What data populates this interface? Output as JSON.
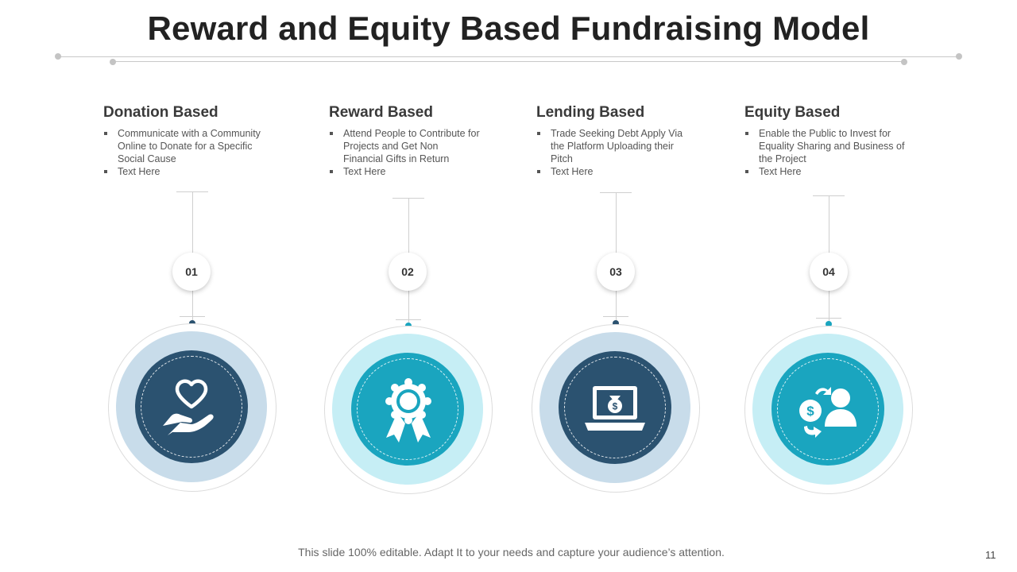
{
  "slide": {
    "title": "Reward and Equity Based Fundraising Model",
    "footer": "This slide 100% editable. Adapt It to your needs and capture your audience’s attention.",
    "page_number": "11"
  },
  "colors": {
    "dark_navy": "#2b5270",
    "teal": "#1aa5bf",
    "light_blue_halo": "#c8dcea",
    "light_teal_halo": "#c6eef5"
  },
  "items": [
    {
      "number": "01",
      "heading": "Donation Based",
      "bullets": [
        "Communicate with a  Community Online to Donate for a Specific Social Cause",
        "Text Here"
      ],
      "icon": "heart-in-hand-icon"
    },
    {
      "number": "02",
      "heading": "Reward Based",
      "bullets": [
        "Attend People to Contribute for Projects and Get Non Financial Gifts in Return",
        "Text Here"
      ],
      "icon": "award-ribbon-icon"
    },
    {
      "number": "03",
      "heading": "Lending Based",
      "bullets": [
        "Trade Seeking Debt Apply Via the Platform Uploading their Pitch",
        "Text Here"
      ],
      "icon": "laptop-money-icon"
    },
    {
      "number": "04",
      "heading": "Equity Based",
      "bullets": [
        "Enable the Public to Invest for Equality Sharing and Business of the Project",
        "Text Here"
      ],
      "icon": "investor-exchange-icon"
    }
  ]
}
